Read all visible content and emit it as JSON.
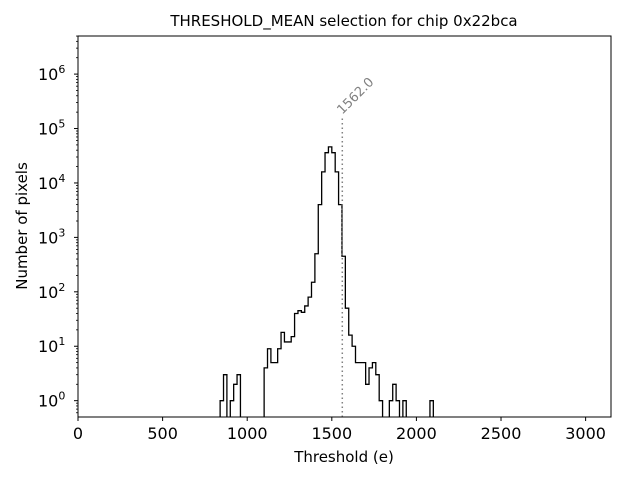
{
  "chart_data": {
    "type": "histogram",
    "title": "THRESHOLD_MEAN selection for chip 0x22bca",
    "xlabel": "Threshold (e)",
    "ylabel": "Number of pixels",
    "xlim": [
      0,
      3150
    ],
    "ylog_range": [
      -0.3,
      6.7
    ],
    "x_ticks": [
      0,
      500,
      1000,
      1500,
      2000,
      2500,
      3000
    ],
    "x_tick_labels": [
      "0",
      "500",
      "1000",
      "1500",
      "2000",
      "2500",
      "3000"
    ],
    "y_ticks": [
      {
        "exp": 0,
        "base": "10",
        "sup": "0"
      },
      {
        "exp": 1,
        "base": "10",
        "sup": "1"
      },
      {
        "exp": 2,
        "base": "10",
        "sup": "2"
      },
      {
        "exp": 3,
        "base": "10",
        "sup": "3"
      },
      {
        "exp": 4,
        "base": "10",
        "sup": "4"
      },
      {
        "exp": 5,
        "base": "10",
        "sup": "5"
      },
      {
        "exp": 6,
        "base": "10",
        "sup": "6"
      }
    ],
    "bin_width": 20,
    "bins": [
      [
        840,
        1
      ],
      [
        860,
        3
      ],
      [
        900,
        1
      ],
      [
        920,
        2
      ],
      [
        940,
        3
      ],
      [
        1100,
        4
      ],
      [
        1120,
        9
      ],
      [
        1140,
        5
      ],
      [
        1160,
        5
      ],
      [
        1180,
        9
      ],
      [
        1200,
        18
      ],
      [
        1220,
        12
      ],
      [
        1240,
        12
      ],
      [
        1260,
        15
      ],
      [
        1280,
        40
      ],
      [
        1300,
        45
      ],
      [
        1320,
        42
      ],
      [
        1340,
        55
      ],
      [
        1360,
        80
      ],
      [
        1380,
        150
      ],
      [
        1400,
        500
      ],
      [
        1420,
        4000
      ],
      [
        1440,
        16000
      ],
      [
        1460,
        36000
      ],
      [
        1480,
        46000
      ],
      [
        1500,
        36000
      ],
      [
        1520,
        16000
      ],
      [
        1540,
        4000
      ],
      [
        1560,
        450
      ],
      [
        1580,
        50
      ],
      [
        1600,
        16
      ],
      [
        1620,
        10
      ],
      [
        1640,
        5
      ],
      [
        1660,
        5
      ],
      [
        1680,
        5
      ],
      [
        1700,
        2
      ],
      [
        1720,
        4
      ],
      [
        1740,
        5
      ],
      [
        1760,
        3
      ],
      [
        1780,
        1
      ],
      [
        1840,
        1
      ],
      [
        1860,
        2
      ],
      [
        1880,
        1
      ],
      [
        1920,
        1
      ],
      [
        2080,
        1
      ]
    ],
    "marker": {
      "x": 1562.0,
      "label": "1562.0",
      "color": "#808080",
      "style": "dotted"
    }
  }
}
